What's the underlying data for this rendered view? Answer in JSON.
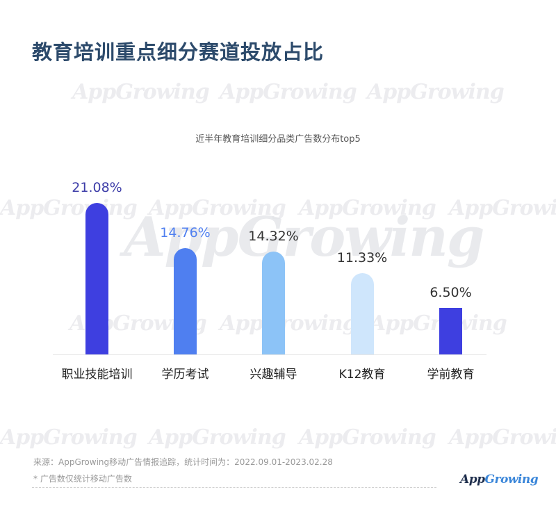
{
  "page": {
    "title": "教育培训重点细分赛道投放占比",
    "watermark": "AppGrowing"
  },
  "chart_data": {
    "type": "bar",
    "title": "近半年教育培训细分品类广告数分布top5",
    "categories": [
      "职业技能培训",
      "学历考试",
      "兴趣辅导",
      "K12教育",
      "学前教育"
    ],
    "values": [
      21.08,
      14.76,
      14.32,
      11.33,
      6.5
    ],
    "value_labels": [
      "21.08%",
      "14.76%",
      "14.32%",
      "11.33%",
      "6.50%"
    ],
    "bar_colors": [
      "#3e3fe0",
      "#4f7ff0",
      "#8cc3f7",
      "#cfe6fc",
      "#3e3fe0"
    ],
    "label_colors": [
      "#3d3da8",
      "#4f7ff0",
      "#333333",
      "#333333",
      "#333333"
    ],
    "xlabel": "",
    "ylabel": "",
    "unit": "%",
    "grid": false,
    "legend": false
  },
  "footer": {
    "source": "来源：AppGrowing移动广告情报追踪，统计时间为：2022.09.01-2023.02.28",
    "note": "* 广告数仅统计移动广告数",
    "logo_app": "App",
    "logo_growing": "Growing"
  }
}
